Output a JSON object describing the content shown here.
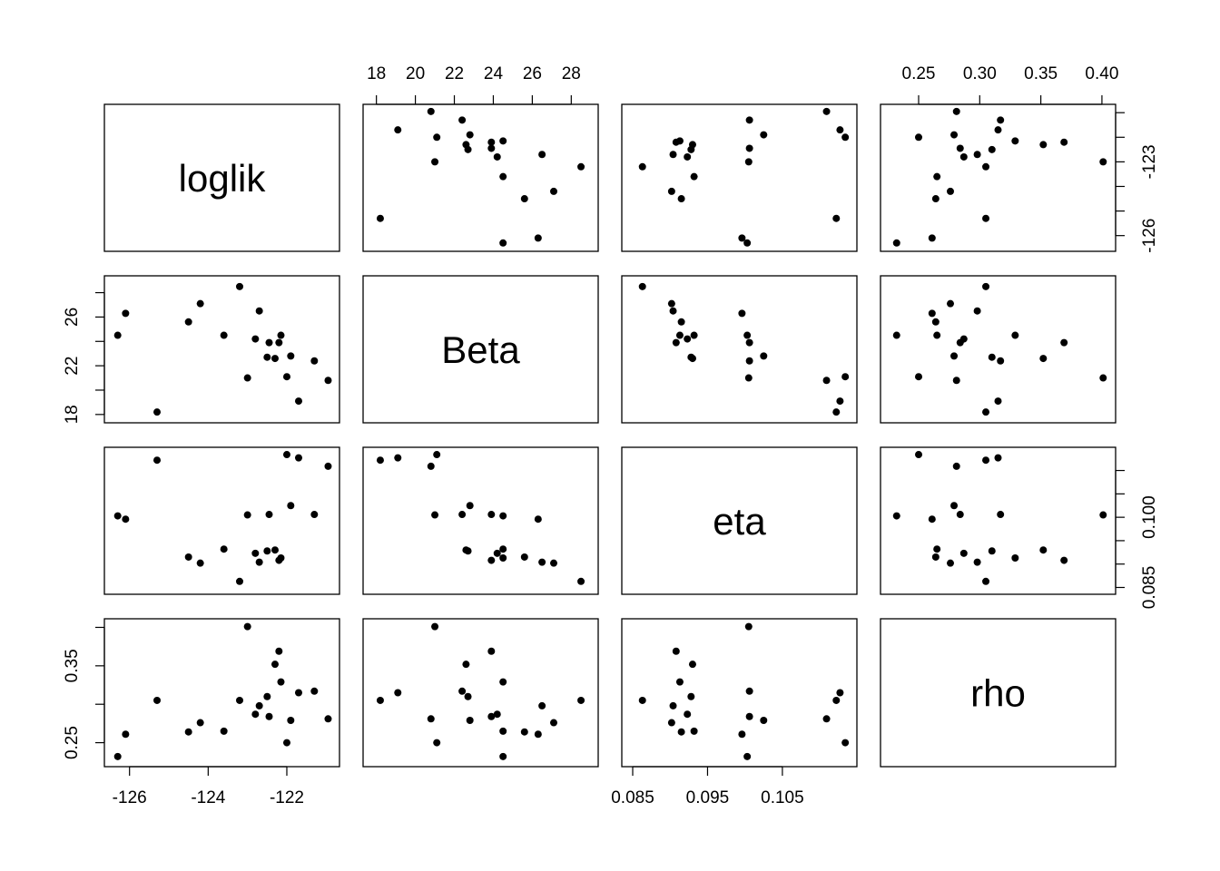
{
  "chart_data": {
    "type": "scatter-matrix",
    "title": "",
    "variables": [
      {
        "name": "loglik",
        "range": [
          -126.4,
          -120.9
        ],
        "ticks": [
          -126,
          -124,
          -122
        ],
        "tick_labels": [
          "-126",
          "-124",
          "-122"
        ],
        "right_ticks": [
          -126,
          -125,
          -124,
          -123,
          -122,
          -121
        ],
        "right_labels": [
          "-126",
          "",
          "",
          "-123",
          "",
          ""
        ]
      },
      {
        "name": "Beta",
        "range": [
          17.8,
          28.9
        ],
        "ticks": [
          18,
          20,
          22,
          24,
          26,
          28
        ],
        "tick_labels": [
          "18",
          "20",
          "22",
          "24",
          "26",
          "28"
        ],
        "left_ticks": [
          18,
          20,
          22,
          24,
          26,
          28
        ],
        "left_labels": [
          "18",
          "",
          "22",
          "",
          "26",
          ""
        ]
      },
      {
        "name": "eta",
        "range": [
          0.0848,
          0.1137
        ],
        "ticks": [
          0.085,
          0.095,
          0.105
        ],
        "tick_labels": [
          "0.085",
          "0.095",
          "0.105"
        ],
        "right_ticks": [
          0.085,
          0.09,
          0.095,
          0.1,
          0.105,
          0.11
        ],
        "right_labels": [
          "0.085",
          "",
          "",
          "0.100",
          "",
          ""
        ]
      },
      {
        "name": "rho",
        "range": [
          0.2265,
          0.4035
        ],
        "ticks": [
          0.25,
          0.3,
          0.35,
          0.4
        ],
        "tick_labels": [
          "0.25",
          "0.30",
          "0.35",
          "0.40"
        ],
        "left_ticks": [
          0.25,
          0.3,
          0.35,
          0.4
        ],
        "left_labels": [
          "0.25",
          "",
          "0.35",
          ""
        ]
      }
    ],
    "points": [
      {
        "loglik": -126.3,
        "Beta": 24.5,
        "eta": 0.1003,
        "rho": 0.232
      },
      {
        "loglik": -126.1,
        "Beta": 26.3,
        "eta": 0.0996,
        "rho": 0.261
      },
      {
        "loglik": -125.3,
        "Beta": 18.2,
        "eta": 0.1122,
        "rho": 0.305
      },
      {
        "loglik": -124.5,
        "Beta": 25.6,
        "eta": 0.0915,
        "rho": 0.264
      },
      {
        "loglik": -124.2,
        "Beta": 27.1,
        "eta": 0.0902,
        "rho": 0.276
      },
      {
        "loglik": -123.6,
        "Beta": 24.5,
        "eta": 0.0932,
        "rho": 0.265
      },
      {
        "loglik": -123.2,
        "Beta": 28.5,
        "eta": 0.0863,
        "rho": 0.305
      },
      {
        "loglik": -123.0,
        "Beta": 21.0,
        "eta": 0.1005,
        "rho": 0.401
      },
      {
        "loglik": -122.8,
        "Beta": 24.2,
        "eta": 0.0923,
        "rho": 0.287
      },
      {
        "loglik": -122.7,
        "Beta": 26.5,
        "eta": 0.0904,
        "rho": 0.298
      },
      {
        "loglik": -122.5,
        "Beta": 22.7,
        "eta": 0.0928,
        "rho": 0.31
      },
      {
        "loglik": -122.45,
        "Beta": 23.9,
        "eta": 0.1006,
        "rho": 0.284
      },
      {
        "loglik": -122.3,
        "Beta": 22.6,
        "eta": 0.093,
        "rho": 0.352
      },
      {
        "loglik": -122.2,
        "Beta": 23.9,
        "eta": 0.0908,
        "rho": 0.369
      },
      {
        "loglik": -122.15,
        "Beta": 24.5,
        "eta": 0.0913,
        "rho": 0.329
      },
      {
        "loglik": -122.0,
        "Beta": 21.1,
        "eta": 0.1134,
        "rho": 0.25
      },
      {
        "loglik": -121.9,
        "Beta": 22.8,
        "eta": 0.1025,
        "rho": 0.279
      },
      {
        "loglik": -121.7,
        "Beta": 19.1,
        "eta": 0.1127,
        "rho": 0.315
      },
      {
        "loglik": -121.3,
        "Beta": 22.4,
        "eta": 0.1006,
        "rho": 0.317
      },
      {
        "loglik": -120.95,
        "Beta": 20.8,
        "eta": 0.1109,
        "rho": 0.281
      }
    ],
    "grid": false,
    "legend": "none"
  }
}
